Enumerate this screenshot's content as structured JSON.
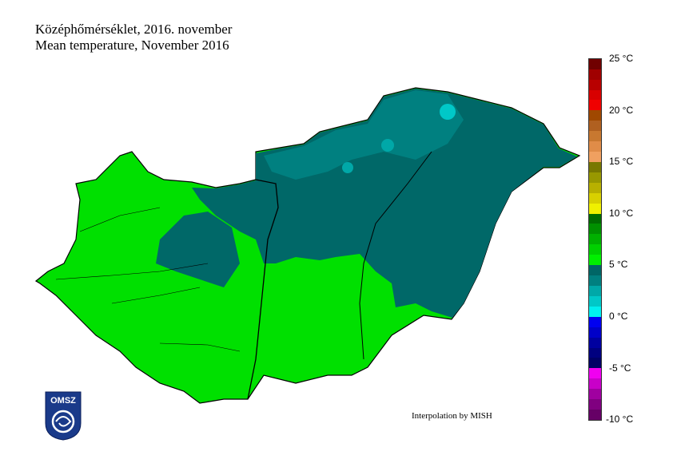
{
  "title_hu": "Középhőmérséklet, 2016. november",
  "title_en": "Mean temperature, November 2016",
  "credit": "Interpolation by MISH",
  "logo_text": "OMSZ",
  "legend": {
    "min": -10,
    "max": 25,
    "step": 1,
    "ticks": [
      "25 °C",
      "20 °C",
      "15 °C",
      "10 °C",
      "5 °C",
      "0 °C",
      "-5 °C",
      "-10 °C"
    ],
    "colors": [
      "#660066",
      "#800080",
      "#a000a0",
      "#c800c8",
      "#f000f0",
      "#000066",
      "#000080",
      "#0000a0",
      "#0000c8",
      "#0000f0",
      "#00f0f0",
      "#00c8c8",
      "#00a8a8",
      "#008080",
      "#006666",
      "#00f000",
      "#00d000",
      "#00b000",
      "#009000",
      "#006c00",
      "#f0f000",
      "#d8d000",
      "#b8b000",
      "#989800",
      "#787800",
      "#f0a060",
      "#e08c48",
      "#c87830",
      "#b06020",
      "#a04800",
      "#f00000",
      "#d80000",
      "#b80000",
      "#a00000",
      "#700000"
    ]
  },
  "map_colors": {
    "warm": "#00e000",
    "cool": "#006868",
    "mid": "#008080",
    "light": "#00c8c8"
  }
}
